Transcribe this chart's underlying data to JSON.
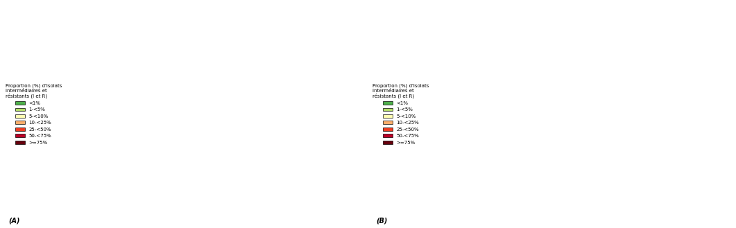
{
  "title_A": "(A)",
  "title_B": "(B)",
  "legend_title": "Proportion (%) d'isolats\nintermédiaires et\nrésistants (I et R)",
  "legend_labels": [
    "<1%",
    "1-<5%",
    "5-<10%",
    "10-<25%",
    "25-<50%",
    "50-<75%",
    ">=75%"
  ],
  "legend_colors": [
    "#4daf4a",
    "#b3de69",
    "#ffffb3",
    "#fdae6b",
    "#f03b20",
    "#bd0026",
    "#67000d"
  ],
  "no_data_color": "#aaaaaa",
  "background_color": "#ffffff",
  "map_background": "#d4e8f5",
  "country_edge_color": "#2d1a00",
  "country_edge_width": 0.4,
  "data_2005": {
    "Iceland": "#fdae6b",
    "Norway": "#b3de69",
    "Sweden": "#b3de69",
    "Finland": "#b3de69",
    "Denmark": "#b3de69",
    "Estonia": "#b3de69",
    "Latvia": "#b3de69",
    "Lithuania": "#b3de69",
    "United Kingdom": "#fdae6b",
    "Ireland": "#fdae6b",
    "Netherlands": "#ffffb3",
    "Belgium": "#ffffb3",
    "Luxembourg": "#ffffb3",
    "France": "#f03b20",
    "Germany": "#b3de69",
    "Austria": "#fdae6b",
    "Switzerland": "#ffffb3",
    "Poland": "#aaaaaa",
    "Czech Republic": "#b3de69",
    "Slovakia": "#aaaaaa",
    "Hungary": "#fdae6b",
    "Romania": "#f03b20",
    "Bulgaria": "#f03b20",
    "Croatia": "#fdae6b",
    "Slovenia": "#ffffb3",
    "Italy": "#fdae6b",
    "Spain": "#fdae6b",
    "Portugal": "#fdae6b",
    "Greece": "#aaaaaa",
    "Cyprus": "#fdae6b",
    "Malta": "#aaaaaa",
    "Serbia": "#aaaaaa",
    "Montenegro": "#aaaaaa",
    "North Macedonia": "#aaaaaa",
    "Albania": "#aaaaaa",
    "Bosnia and Herzegovina": "#aaaaaa",
    "Kosovo": "#aaaaaa",
    "Moldova": "#aaaaaa",
    "Ukraine": "#aaaaaa",
    "Belarus": "#aaaaaa",
    "Russia": "#aaaaaa"
  },
  "data_2015": {
    "Iceland": "#fdae6b",
    "Norway": "#fdae6b",
    "Sweden": "#fdae6b",
    "Finland": "#fdae6b",
    "Denmark": "#4daf4a",
    "Estonia": "#fdae6b",
    "Latvia": "#fdae6b",
    "Lithuania": "#fdae6b",
    "United Kingdom": "#fdae6b",
    "Ireland": "#fdae6b",
    "Netherlands": "#4daf4a",
    "Belgium": "#fdae6b",
    "Luxembourg": "#fdae6b",
    "France": "#fdae6b",
    "Germany": "#b3de69",
    "Austria": "#ffffb3",
    "Switzerland": "#ffffb3",
    "Poland": "#fdae6b",
    "Czech Republic": "#b3de69",
    "Slovakia": "#fdae6b",
    "Hungary": "#ffffb3",
    "Romania": "#f03b20",
    "Bulgaria": "#fdae6b",
    "Croatia": "#fdae6b",
    "Slovenia": "#ffffb3",
    "Italy": "#fdae6b",
    "Spain": "#fdae6b",
    "Portugal": "#fdae6b",
    "Greece": "#aaaaaa",
    "Cyprus": "#fdae6b",
    "Malta": "#aaaaaa",
    "Serbia": "#aaaaaa",
    "Montenegro": "#aaaaaa",
    "North Macedonia": "#aaaaaa",
    "Albania": "#aaaaaa",
    "Bosnia and Herzegovina": "#aaaaaa",
    "Kosovo": "#aaaaaa",
    "Moldova": "#aaaaaa",
    "Ukraine": "#aaaaaa",
    "Belarus": "#aaaaaa",
    "Russia": "#aaaaaa"
  }
}
